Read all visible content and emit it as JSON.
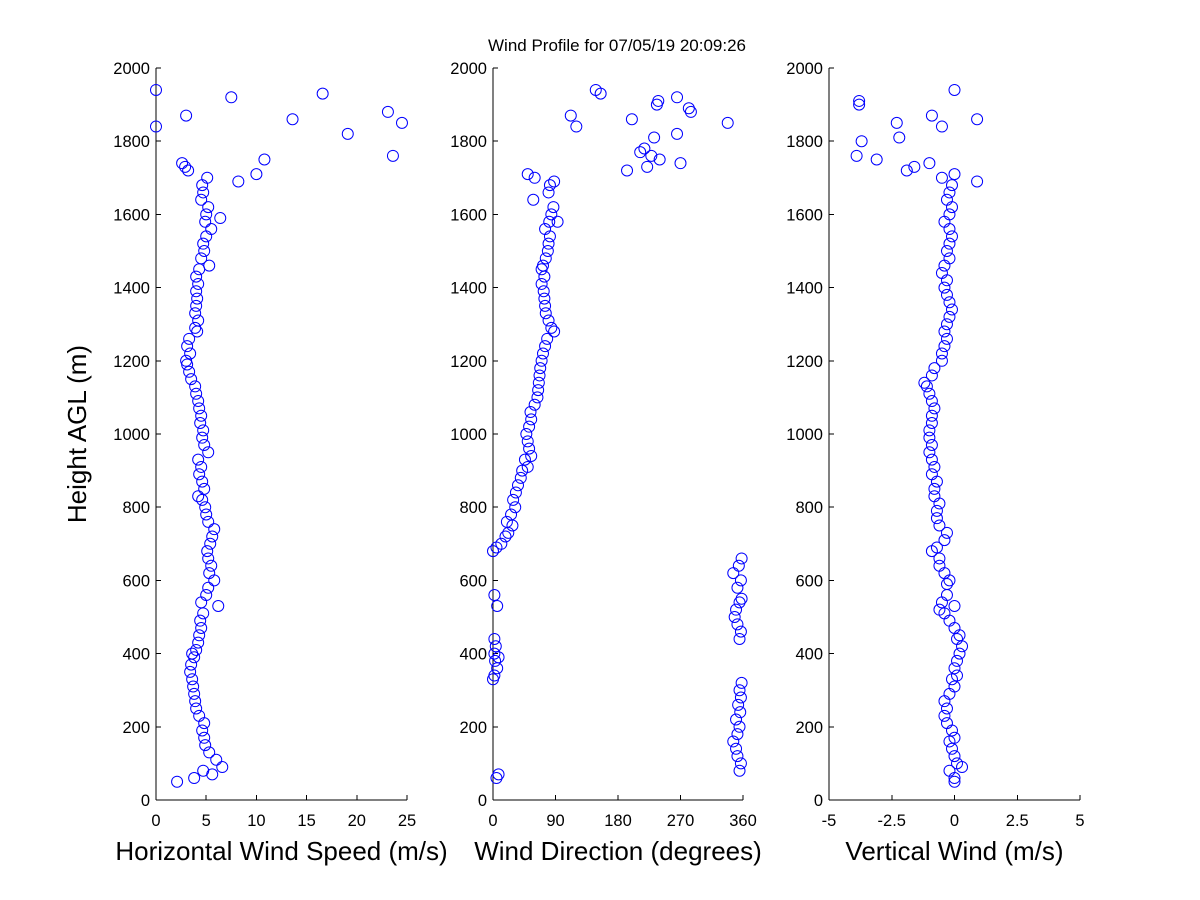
{
  "title": "Wind Profile for  07/05/19 20:09:26",
  "chart_data": [
    {
      "type": "scatter",
      "name": "horizontal-wind-speed",
      "xlabel": "Horizontal Wind Speed (m/s)",
      "ylabel": "Height AGL (m)",
      "xlim": [
        0,
        25
      ],
      "ylim": [
        0,
        2000
      ],
      "xticks": [
        0,
        5,
        10,
        15,
        20,
        25
      ],
      "xtick_labels": [
        "0",
        "5",
        "10",
        "15",
        "20",
        "25"
      ],
      "yticks": [
        0,
        200,
        400,
        600,
        800,
        1000,
        1200,
        1400,
        1600,
        1800,
        2000
      ],
      "ytick_labels": [
        "0",
        "200",
        "400",
        "600",
        "800",
        "1000",
        "1200",
        "1400",
        "1600",
        "1800",
        "2000"
      ],
      "marker_color": "#0000ff",
      "grid": false,
      "points": [
        [
          2.1,
          50
        ],
        [
          3.8,
          60
        ],
        [
          4.7,
          80
        ],
        [
          5.6,
          70
        ],
        [
          6.6,
          90
        ],
        [
          6.0,
          110
        ],
        [
          5.3,
          130
        ],
        [
          4.9,
          150
        ],
        [
          4.8,
          170
        ],
        [
          4.6,
          190
        ],
        [
          4.8,
          210
        ],
        [
          4.3,
          230
        ],
        [
          4.0,
          250
        ],
        [
          3.9,
          270
        ],
        [
          3.8,
          290
        ],
        [
          3.7,
          310
        ],
        [
          3.6,
          330
        ],
        [
          3.4,
          350
        ],
        [
          3.5,
          370
        ],
        [
          3.8,
          390
        ],
        [
          4.0,
          410
        ],
        [
          3.6,
          400
        ],
        [
          4.2,
          430
        ],
        [
          4.3,
          450
        ],
        [
          4.5,
          470
        ],
        [
          4.4,
          490
        ],
        [
          4.7,
          510
        ],
        [
          4.5,
          540
        ],
        [
          6.2,
          530
        ],
        [
          5.0,
          560
        ],
        [
          5.2,
          580
        ],
        [
          5.8,
          600
        ],
        [
          5.3,
          620
        ],
        [
          5.5,
          640
        ],
        [
          5.2,
          660
        ],
        [
          5.1,
          680
        ],
        [
          5.4,
          700
        ],
        [
          5.6,
          720
        ],
        [
          5.8,
          740
        ],
        [
          5.2,
          760
        ],
        [
          5.0,
          780
        ],
        [
          4.9,
          800
        ],
        [
          4.6,
          820
        ],
        [
          4.2,
          830
        ],
        [
          4.8,
          850
        ],
        [
          4.6,
          870
        ],
        [
          4.3,
          890
        ],
        [
          4.5,
          910
        ],
        [
          4.2,
          930
        ],
        [
          5.2,
          950
        ],
        [
          4.8,
          970
        ],
        [
          4.6,
          990
        ],
        [
          4.7,
          1010
        ],
        [
          4.4,
          1030
        ],
        [
          4.5,
          1050
        ],
        [
          4.3,
          1070
        ],
        [
          4.2,
          1090
        ],
        [
          4.0,
          1110
        ],
        [
          3.9,
          1130
        ],
        [
          3.5,
          1150
        ],
        [
          3.3,
          1170
        ],
        [
          3.1,
          1190
        ],
        [
          3.0,
          1200
        ],
        [
          3.4,
          1220
        ],
        [
          3.1,
          1240
        ],
        [
          3.3,
          1260
        ],
        [
          4.1,
          1280
        ],
        [
          3.9,
          1290
        ],
        [
          4.2,
          1310
        ],
        [
          3.9,
          1330
        ],
        [
          4.0,
          1350
        ],
        [
          4.1,
          1370
        ],
        [
          4.0,
          1390
        ],
        [
          4.2,
          1410
        ],
        [
          4.0,
          1430
        ],
        [
          4.3,
          1450
        ],
        [
          5.3,
          1460
        ],
        [
          4.5,
          1480
        ],
        [
          4.8,
          1500
        ],
        [
          4.7,
          1520
        ],
        [
          5.0,
          1540
        ],
        [
          5.5,
          1560
        ],
        [
          4.9,
          1580
        ],
        [
          6.4,
          1590
        ],
        [
          5.0,
          1600
        ],
        [
          5.2,
          1620
        ],
        [
          4.5,
          1640
        ],
        [
          4.7,
          1660
        ],
        [
          4.6,
          1680
        ],
        [
          5.1,
          1700
        ],
        [
          2.6,
          1740
        ],
        [
          2.9,
          1730
        ],
        [
          3.2,
          1720
        ],
        [
          8.2,
          1690
        ],
        [
          10.0,
          1710
        ],
        [
          10.8,
          1750
        ],
        [
          23.6,
          1760
        ],
        [
          0.0,
          1840
        ],
        [
          3.0,
          1870
        ],
        [
          7.5,
          1920
        ],
        [
          13.6,
          1860
        ],
        [
          16.6,
          1930
        ],
        [
          19.1,
          1820
        ],
        [
          23.1,
          1880
        ],
        [
          24.5,
          1850
        ],
        [
          0.0,
          1940
        ]
      ]
    },
    {
      "type": "scatter",
      "name": "wind-direction",
      "xlabel": "Wind Direction (degrees)",
      "ylabel": "",
      "xlim": [
        0,
        360
      ],
      "ylim": [
        0,
        2000
      ],
      "xticks": [
        0,
        90,
        180,
        270,
        360
      ],
      "xtick_labels": [
        "0",
        "90",
        "180",
        "270",
        "360"
      ],
      "yticks": [
        0,
        200,
        400,
        600,
        800,
        1000,
        1200,
        1400,
        1600,
        1800,
        2000
      ],
      "ytick_labels": [
        "0",
        "200",
        "400",
        "600",
        "800",
        "1000",
        "1200",
        "1400",
        "1600",
        "1800",
        "2000"
      ],
      "marker_color": "#0000ff",
      "grid": false,
      "points": [
        [
          5,
          60
        ],
        [
          8,
          70
        ],
        [
          355,
          80
        ],
        [
          357,
          100
        ],
        [
          352,
          120
        ],
        [
          350,
          140
        ],
        [
          346,
          160
        ],
        [
          352,
          180
        ],
        [
          355,
          200
        ],
        [
          350,
          220
        ],
        [
          356,
          240
        ],
        [
          353,
          260
        ],
        [
          357,
          280
        ],
        [
          355,
          300
        ],
        [
          358,
          320
        ],
        [
          0,
          330
        ],
        [
          2,
          340
        ],
        [
          6,
          360
        ],
        [
          3,
          380
        ],
        [
          8,
          390
        ],
        [
          2,
          400
        ],
        [
          4,
          420
        ],
        [
          2,
          440
        ],
        [
          355,
          440
        ],
        [
          357,
          460
        ],
        [
          352,
          480
        ],
        [
          348,
          500
        ],
        [
          350,
          520
        ],
        [
          355,
          540
        ],
        [
          6,
          530
        ],
        [
          358,
          550
        ],
        [
          2,
          560
        ],
        [
          352,
          580
        ],
        [
          357,
          600
        ],
        [
          346,
          620
        ],
        [
          354,
          640
        ],
        [
          358,
          660
        ],
        [
          0,
          680
        ],
        [
          5,
          690
        ],
        [
          12,
          700
        ],
        [
          18,
          720
        ],
        [
          22,
          730
        ],
        [
          28,
          750
        ],
        [
          20,
          760
        ],
        [
          26,
          780
        ],
        [
          32,
          800
        ],
        [
          29,
          820
        ],
        [
          33,
          840
        ],
        [
          36,
          860
        ],
        [
          40,
          880
        ],
        [
          42,
          900
        ],
        [
          50,
          910
        ],
        [
          46,
          930
        ],
        [
          55,
          940
        ],
        [
          52,
          960
        ],
        [
          50,
          980
        ],
        [
          48,
          1000
        ],
        [
          52,
          1020
        ],
        [
          55,
          1040
        ],
        [
          54,
          1060
        ],
        [
          60,
          1080
        ],
        [
          64,
          1100
        ],
        [
          65,
          1120
        ],
        [
          66,
          1140
        ],
        [
          67,
          1160
        ],
        [
          68,
          1180
        ],
        [
          70,
          1200
        ],
        [
          72,
          1220
        ],
        [
          75,
          1240
        ],
        [
          78,
          1260
        ],
        [
          88,
          1280
        ],
        [
          84,
          1290
        ],
        [
          80,
          1310
        ],
        [
          76,
          1330
        ],
        [
          75,
          1350
        ],
        [
          74,
          1370
        ],
        [
          73,
          1390
        ],
        [
          70,
          1410
        ],
        [
          74,
          1430
        ],
        [
          70,
          1450
        ],
        [
          72,
          1460
        ],
        [
          76,
          1480
        ],
        [
          79,
          1500
        ],
        [
          80,
          1520
        ],
        [
          82,
          1540
        ],
        [
          75,
          1560
        ],
        [
          81,
          1580
        ],
        [
          93,
          1580
        ],
        [
          84,
          1600
        ],
        [
          87,
          1620
        ],
        [
          58,
          1640
        ],
        [
          80,
          1660
        ],
        [
          82,
          1680
        ],
        [
          88,
          1690
        ],
        [
          50,
          1710
        ],
        [
          60,
          1700
        ],
        [
          112,
          1870
        ],
        [
          120,
          1840
        ],
        [
          148,
          1940
        ],
        [
          155,
          1930
        ],
        [
          193,
          1720
        ],
        [
          200,
          1860
        ],
        [
          212,
          1770
        ],
        [
          218,
          1780
        ],
        [
          222,
          1730
        ],
        [
          228,
          1760
        ],
        [
          232,
          1810
        ],
        [
          240,
          1750
        ],
        [
          236,
          1900
        ],
        [
          238,
          1910
        ],
        [
          265,
          1920
        ],
        [
          270,
          1740
        ],
        [
          265,
          1820
        ],
        [
          282,
          1890
        ],
        [
          285,
          1880
        ],
        [
          338,
          1850
        ]
      ]
    },
    {
      "type": "scatter",
      "name": "vertical-wind",
      "xlabel": "Vertical Wind (m/s)",
      "ylabel": "",
      "xlim": [
        -5,
        5
      ],
      "ylim": [
        0,
        2000
      ],
      "xticks": [
        -5,
        -2.5,
        0,
        2.5,
        5
      ],
      "xtick_labels": [
        "-5",
        "-2.5",
        "0",
        "2.5",
        "5"
      ],
      "yticks": [
        0,
        200,
        400,
        600,
        800,
        1000,
        1200,
        1400,
        1600,
        1800,
        2000
      ],
      "ytick_labels": [
        "0",
        "200",
        "400",
        "600",
        "800",
        "1000",
        "1200",
        "1400",
        "1600",
        "1800",
        "2000"
      ],
      "marker_color": "#0000ff",
      "grid": false,
      "points": [
        [
          0.0,
          50
        ],
        [
          0.0,
          60
        ],
        [
          -0.2,
          80
        ],
        [
          0.1,
          100
        ],
        [
          0.3,
          90
        ],
        [
          0.0,
          120
        ],
        [
          -0.1,
          140
        ],
        [
          -0.2,
          160
        ],
        [
          0.0,
          170
        ],
        [
          -0.1,
          190
        ],
        [
          -0.3,
          210
        ],
        [
          -0.4,
          230
        ],
        [
          -0.3,
          250
        ],
        [
          -0.4,
          270
        ],
        [
          -0.2,
          290
        ],
        [
          0.0,
          310
        ],
        [
          -0.1,
          330
        ],
        [
          0.1,
          340
        ],
        [
          0.0,
          360
        ],
        [
          0.1,
          380
        ],
        [
          0.2,
          400
        ],
        [
          0.3,
          420
        ],
        [
          0.1,
          440
        ],
        [
          0.2,
          450
        ],
        [
          0.0,
          470
        ],
        [
          -0.2,
          490
        ],
        [
          -0.4,
          510
        ],
        [
          -0.6,
          520
        ],
        [
          0.0,
          530
        ],
        [
          -0.5,
          540
        ],
        [
          -0.3,
          560
        ],
        [
          -0.3,
          590
        ],
        [
          -0.2,
          600
        ],
        [
          -0.4,
          620
        ],
        [
          -0.6,
          640
        ],
        [
          -0.6,
          660
        ],
        [
          -0.9,
          680
        ],
        [
          -0.7,
          690
        ],
        [
          -0.4,
          710
        ],
        [
          -0.3,
          730
        ],
        [
          -0.6,
          750
        ],
        [
          -0.7,
          770
        ],
        [
          -0.7,
          790
        ],
        [
          -0.6,
          810
        ],
        [
          -0.8,
          830
        ],
        [
          -0.8,
          850
        ],
        [
          -0.7,
          870
        ],
        [
          -0.9,
          890
        ],
        [
          -0.8,
          910
        ],
        [
          -0.9,
          930
        ],
        [
          -1.0,
          950
        ],
        [
          -0.9,
          970
        ],
        [
          -1.0,
          990
        ],
        [
          -1.0,
          1010
        ],
        [
          -0.9,
          1030
        ],
        [
          -0.9,
          1050
        ],
        [
          -0.8,
          1070
        ],
        [
          -0.9,
          1090
        ],
        [
          -1.0,
          1110
        ],
        [
          -1.1,
          1130
        ],
        [
          -1.2,
          1140
        ],
        [
          -0.9,
          1160
        ],
        [
          -0.8,
          1180
        ],
        [
          -0.5,
          1200
        ],
        [
          -0.5,
          1220
        ],
        [
          -0.4,
          1240
        ],
        [
          -0.3,
          1260
        ],
        [
          -0.4,
          1280
        ],
        [
          -0.3,
          1300
        ],
        [
          -0.2,
          1320
        ],
        [
          -0.1,
          1340
        ],
        [
          -0.2,
          1360
        ],
        [
          -0.3,
          1380
        ],
        [
          -0.4,
          1400
        ],
        [
          -0.3,
          1420
        ],
        [
          -0.5,
          1440
        ],
        [
          -0.4,
          1460
        ],
        [
          -0.2,
          1480
        ],
        [
          -0.3,
          1500
        ],
        [
          -0.2,
          1520
        ],
        [
          -0.1,
          1540
        ],
        [
          -0.2,
          1560
        ],
        [
          -0.4,
          1580
        ],
        [
          -0.2,
          1600
        ],
        [
          -0.1,
          1620
        ],
        [
          -0.3,
          1640
        ],
        [
          -0.2,
          1660
        ],
        [
          -0.1,
          1680
        ],
        [
          0.0,
          1710
        ],
        [
          -0.5,
          1700
        ],
        [
          0.9,
          1690
        ],
        [
          0.9,
          1860
        ],
        [
          -1.0,
          1740
        ],
        [
          -1.6,
          1730
        ],
        [
          -1.9,
          1720
        ],
        [
          -2.2,
          1810
        ],
        [
          -2.3,
          1850
        ],
        [
          -3.1,
          1750
        ],
        [
          -3.7,
          1800
        ],
        [
          -3.9,
          1760
        ],
        [
          -3.8,
          1900
        ],
        [
          -3.8,
          1910
        ],
        [
          -0.9,
          1870
        ],
        [
          -0.5,
          1840
        ],
        [
          0.0,
          1940
        ]
      ]
    }
  ]
}
